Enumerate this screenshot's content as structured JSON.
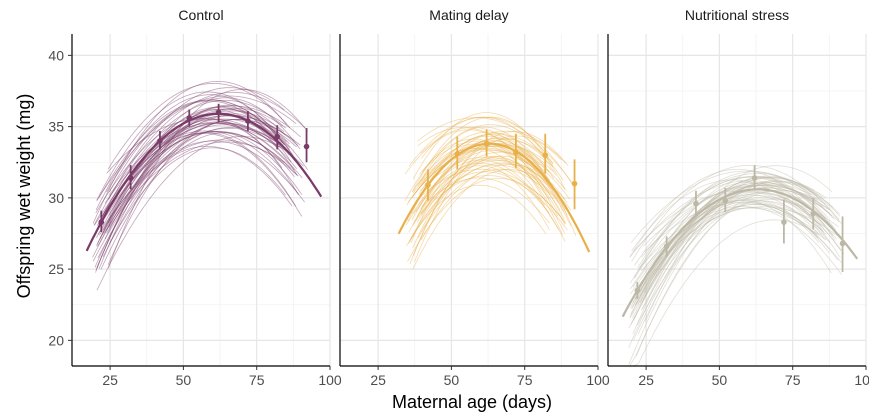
{
  "chart_data": {
    "type": "line",
    "xlabel": "Maternal age (days)",
    "ylabel": "Offspring wet weight (mg)",
    "xlim": [
      12,
      100
    ],
    "ylim": [
      18.2,
      41.5
    ],
    "x_ticks": [
      25,
      50,
      75,
      100
    ],
    "y_ticks": [
      20,
      25,
      30,
      35,
      40
    ],
    "grid": true,
    "panels": [
      {
        "name": "Control",
        "color": "#7a3b69",
        "x_range": [
          17,
          97
        ],
        "peak_x": 62,
        "peak_y": 35.9,
        "means": [
          {
            "x": 22,
            "y": 28.3,
            "low": 27.6,
            "high": 29.1
          },
          {
            "x": 32,
            "y": 31.4,
            "low": 30.6,
            "high": 32.3
          },
          {
            "x": 42,
            "y": 34.0,
            "low": 33.4,
            "high": 34.7
          },
          {
            "x": 52,
            "y": 35.6,
            "low": 35.0,
            "high": 36.2
          },
          {
            "x": 62,
            "y": 36.0,
            "low": 35.3,
            "high": 36.6
          },
          {
            "x": 72,
            "y": 35.4,
            "low": 34.7,
            "high": 36.1
          },
          {
            "x": 82,
            "y": 34.3,
            "low": 33.4,
            "high": 35.1
          },
          {
            "x": 92,
            "y": 33.6,
            "low": 32.5,
            "high": 34.9
          }
        ]
      },
      {
        "name": "Mating delay",
        "color": "#e8b04a",
        "x_range": [
          32,
          97
        ],
        "peak_x": 63,
        "peak_y": 33.8,
        "means": [
          {
            "x": 42,
            "y": 30.9,
            "low": 29.8,
            "high": 32.0
          },
          {
            "x": 52,
            "y": 33.1,
            "low": 32.0,
            "high": 34.3
          },
          {
            "x": 62,
            "y": 33.8,
            "low": 32.9,
            "high": 34.8
          },
          {
            "x": 72,
            "y": 33.2,
            "low": 32.1,
            "high": 34.5
          },
          {
            "x": 82,
            "y": 33.0,
            "low": 31.7,
            "high": 34.5
          },
          {
            "x": 92,
            "y": 31.0,
            "low": 29.2,
            "high": 32.7
          }
        ]
      },
      {
        "name": "Nutritional stress",
        "color": "#bdb8a6",
        "x_range": [
          17,
          97
        ],
        "peak_x": 63,
        "peak_y": 30.6,
        "means": [
          {
            "x": 22,
            "y": 23.5,
            "low": 22.9,
            "high": 24.1
          },
          {
            "x": 32,
            "y": 26.6,
            "low": 25.9,
            "high": 27.3
          },
          {
            "x": 42,
            "y": 29.6,
            "low": 28.8,
            "high": 30.5
          },
          {
            "x": 52,
            "y": 29.8,
            "low": 29.0,
            "high": 30.7
          },
          {
            "x": 62,
            "y": 31.4,
            "low": 30.5,
            "high": 32.3
          },
          {
            "x": 72,
            "y": 28.3,
            "low": 26.8,
            "high": 29.9
          },
          {
            "x": 82,
            "y": 28.9,
            "low": 27.8,
            "high": 30.0
          },
          {
            "x": 92,
            "y": 26.8,
            "low": 24.8,
            "high": 28.7
          }
        ]
      }
    ]
  }
}
